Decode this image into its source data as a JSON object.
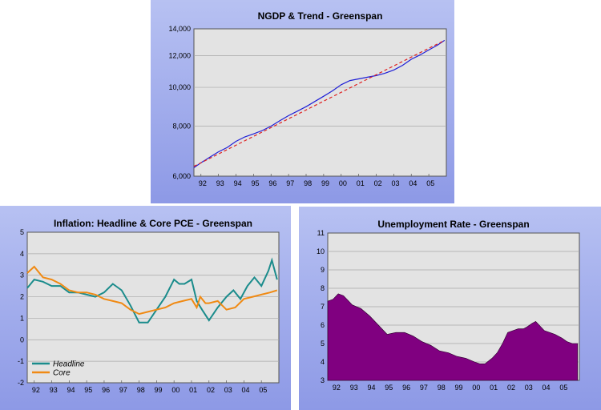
{
  "chart_data": [
    {
      "type": "line",
      "title": "NGDP & Trend - Greenspan",
      "y_scale": "log",
      "ylim": [
        6000,
        14000
      ],
      "yticks": [
        6000,
        8000,
        10000,
        12000,
        14000
      ],
      "ytick_labels": [
        "6,000",
        "8,000",
        "10,000",
        "12,000",
        "14,000"
      ],
      "xlim": [
        1991.6,
        2006.0
      ],
      "xtick_labels": [
        "92",
        "93",
        "94",
        "95",
        "96",
        "97",
        "98",
        "99",
        "00",
        "01",
        "02",
        "03",
        "04",
        "05"
      ],
      "grid": "horizontal",
      "series": [
        {
          "style": "solid",
          "color": "#1f1fd6",
          "x": [
            1991.6,
            1992.0,
            1992.5,
            1993.0,
            1993.5,
            1994.0,
            1994.5,
            1995.0,
            1995.5,
            1996.0,
            1996.5,
            1997.0,
            1997.5,
            1998.0,
            1998.5,
            1999.0,
            1999.5,
            2000.0,
            2000.5,
            2001.0,
            2001.5,
            2002.0,
            2002.5,
            2003.0,
            2003.5,
            2004.0,
            2004.5,
            2005.0,
            2005.5,
            2005.9
          ],
          "y": [
            6300,
            6480,
            6690,
            6900,
            7080,
            7330,
            7520,
            7650,
            7800,
            8000,
            8250,
            8500,
            8720,
            8950,
            9220,
            9500,
            9800,
            10150,
            10400,
            10500,
            10600,
            10700,
            10850,
            11050,
            11350,
            11750,
            12050,
            12400,
            12750,
            13100
          ]
        },
        {
          "style": "dashed",
          "color": "#e02020",
          "x": [
            1991.6,
            2005.9
          ],
          "y": [
            6350,
            13100
          ]
        }
      ]
    },
    {
      "type": "line",
      "title": "Inflation: Headline & Core PCE - Greenspan",
      "ylim": [
        -2,
        5
      ],
      "yticks": [
        -2,
        -1,
        0,
        1,
        2,
        3,
        4,
        5
      ],
      "ytick_labels": [
        "-2",
        "-1",
        "0",
        "1",
        "2",
        "3",
        "4",
        "5"
      ],
      "xlim": [
        1991.6,
        2006.0
      ],
      "xtick_labels": [
        "92",
        "93",
        "94",
        "95",
        "96",
        "97",
        "98",
        "99",
        "00",
        "01",
        "02",
        "03",
        "04",
        "05"
      ],
      "grid": "horizontal",
      "legend_position": "bottom-left",
      "series": [
        {
          "name": "Headline",
          "color": "#1b8c8c",
          "x": [
            1991.6,
            1992.0,
            1992.5,
            1993.0,
            1993.5,
            1994.0,
            1994.5,
            1995.0,
            1995.5,
            1996.0,
            1996.5,
            1997.0,
            1997.5,
            1998.0,
            1998.5,
            1999.0,
            1999.5,
            2000.0,
            2000.3,
            2000.6,
            2001.0,
            2001.3,
            2001.6,
            2002.0,
            2002.5,
            2003.0,
            2003.4,
            2003.8,
            2004.2,
            2004.6,
            2005.0,
            2005.4,
            2005.6,
            2005.9
          ],
          "y": [
            2.4,
            2.8,
            2.7,
            2.5,
            2.5,
            2.2,
            2.2,
            2.1,
            2.0,
            2.2,
            2.6,
            2.3,
            1.6,
            0.8,
            0.8,
            1.4,
            2.0,
            2.8,
            2.6,
            2.6,
            2.8,
            1.8,
            1.4,
            0.9,
            1.5,
            2.0,
            2.3,
            1.9,
            2.5,
            2.9,
            2.5,
            3.2,
            3.7,
            2.8
          ]
        },
        {
          "name": "Core",
          "color": "#f08a14",
          "x": [
            1991.6,
            1992.0,
            1992.5,
            1993.0,
            1993.5,
            1994.0,
            1994.5,
            1995.0,
            1995.5,
            1996.0,
            1996.5,
            1997.0,
            1997.5,
            1998.0,
            1998.5,
            1999.0,
            1999.5,
            2000.0,
            2000.5,
            2001.0,
            2001.3,
            2001.5,
            2001.8,
            2002.0,
            2002.5,
            2003.0,
            2003.5,
            2004.0,
            2004.5,
            2005.0,
            2005.5,
            2005.9
          ],
          "y": [
            3.1,
            3.4,
            2.9,
            2.8,
            2.6,
            2.3,
            2.2,
            2.2,
            2.1,
            1.9,
            1.8,
            1.7,
            1.4,
            1.2,
            1.3,
            1.4,
            1.5,
            1.7,
            1.8,
            1.9,
            1.5,
            2.0,
            1.7,
            1.7,
            1.8,
            1.4,
            1.5,
            1.9,
            2.0,
            2.1,
            2.2,
            2.3
          ]
        }
      ]
    },
    {
      "type": "area",
      "title": "Unemployment Rate - Greenspan",
      "ylim": [
        3,
        11
      ],
      "yticks": [
        3,
        4,
        5,
        6,
        7,
        8,
        9,
        10,
        11
      ],
      "ytick_labels": [
        "3",
        "4",
        "5",
        "6",
        "7",
        "8",
        "9",
        "10",
        "11"
      ],
      "xlim": [
        1991.6,
        2006.0
      ],
      "xtick_labels": [
        "92",
        "93",
        "94",
        "95",
        "96",
        "97",
        "98",
        "99",
        "00",
        "01",
        "02",
        "03",
        "04",
        "05"
      ],
      "grid": "horizontal",
      "series": [
        {
          "color": "#800080",
          "x": [
            1991.6,
            1991.9,
            1992.2,
            1992.5,
            1992.8,
            1993.0,
            1993.5,
            1994.0,
            1994.5,
            1995.0,
            1995.5,
            1996.0,
            1996.5,
            1997.0,
            1997.5,
            1998.0,
            1998.5,
            1999.0,
            1999.5,
            2000.0,
            2000.3,
            2000.6,
            2001.0,
            2001.3,
            2001.6,
            2001.9,
            2002.2,
            2002.5,
            2002.8,
            2003.0,
            2003.3,
            2003.5,
            2003.8,
            2004.0,
            2004.3,
            2004.6,
            2005.0,
            2005.3,
            2005.6,
            2005.9
          ],
          "y": [
            7.3,
            7.4,
            7.7,
            7.6,
            7.3,
            7.1,
            6.9,
            6.5,
            6.0,
            5.5,
            5.6,
            5.6,
            5.4,
            5.1,
            4.9,
            4.6,
            4.5,
            4.3,
            4.2,
            4.0,
            3.9,
            3.9,
            4.2,
            4.5,
            5.0,
            5.6,
            5.7,
            5.8,
            5.8,
            5.9,
            6.1,
            6.2,
            5.9,
            5.7,
            5.6,
            5.5,
            5.3,
            5.1,
            5.0,
            5.0
          ]
        }
      ]
    }
  ]
}
